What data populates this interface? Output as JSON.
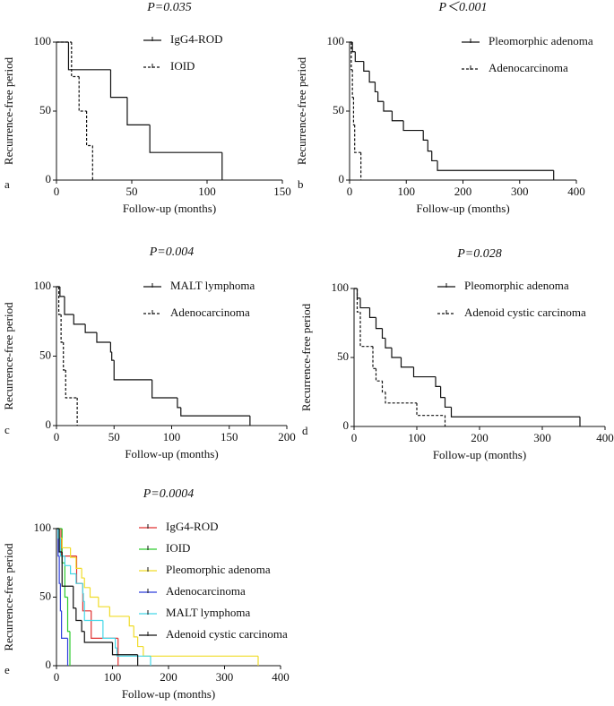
{
  "chart_data": [
    {
      "type": "step",
      "panel_label": "a",
      "annotation": "P=0.035",
      "xlabel": "Follow-up (months)",
      "ylabel": "Recurrence-free period",
      "xlim": [
        0,
        150
      ],
      "xticks": [
        0,
        50,
        100,
        150
      ],
      "ylim": [
        0,
        100
      ],
      "yticks": [
        0,
        50,
        100
      ],
      "series": [
        {
          "name": "IgG4-ROD",
          "color": "#111111",
          "dashed": false,
          "x": [
            0,
            8,
            36,
            47,
            62,
            110
          ],
          "values": [
            100,
            80,
            60,
            40,
            20,
            0
          ]
        },
        {
          "name": "IOID",
          "color": "#111111",
          "dashed": true,
          "x": [
            0,
            10,
            15,
            20,
            24
          ],
          "values": [
            100,
            75,
            50,
            25,
            0
          ]
        }
      ]
    },
    {
      "type": "step",
      "panel_label": "b",
      "annotation": "P＜0.001",
      "xlabel": "Follow-up (months)",
      "ylabel": "Recurrence-free period",
      "xlim": [
        0,
        400
      ],
      "xticks": [
        0,
        100,
        200,
        300,
        400
      ],
      "ylim": [
        0,
        100
      ],
      "yticks": [
        0,
        50,
        100
      ],
      "series": [
        {
          "name": "Pleomorphic adenoma",
          "color": "#111111",
          "dashed": false,
          "x": [
            0,
            5,
            10,
            25,
            35,
            45,
            50,
            60,
            75,
            95,
            130,
            138,
            145,
            155,
            360
          ],
          "values": [
            100,
            93,
            86,
            79,
            71,
            64,
            57,
            50,
            43,
            36,
            29,
            21,
            14,
            7,
            0
          ]
        },
        {
          "name": "Adenocarcinoma",
          "color": "#111111",
          "dashed": true,
          "x": [
            0,
            3,
            5,
            7,
            9,
            20
          ],
          "values": [
            100,
            80,
            60,
            40,
            20,
            0
          ]
        }
      ]
    },
    {
      "type": "step",
      "panel_label": "c",
      "annotation": "P=0.004",
      "xlabel": "Follow-up (months)",
      "ylabel": "Recurrence-free period",
      "xlim": [
        0,
        200
      ],
      "xticks": [
        0,
        50,
        100,
        150,
        200
      ],
      "ylim": [
        0,
        100
      ],
      "yticks": [
        0,
        50,
        100
      ],
      "series": [
        {
          "name": "MALT lymphoma",
          "color": "#111111",
          "dashed": false,
          "x": [
            0,
            3,
            7,
            15,
            25,
            35,
            47,
            48,
            50,
            83,
            105,
            108,
            168
          ],
          "values": [
            100,
            93,
            80,
            73,
            67,
            60,
            53,
            47,
            33,
            20,
            13,
            7,
            0
          ]
        },
        {
          "name": "Adenocarcinoma",
          "color": "#111111",
          "dashed": true,
          "x": [
            0,
            2,
            4,
            6,
            8,
            18
          ],
          "values": [
            100,
            80,
            60,
            40,
            20,
            0
          ]
        }
      ]
    },
    {
      "type": "step",
      "panel_label": "d",
      "annotation": "P=0.028",
      "xlabel": "Follow-up (months)",
      "ylabel": "Recurrence-free period",
      "xlim": [
        0,
        400
      ],
      "xticks": [
        0,
        100,
        200,
        300,
        400
      ],
      "ylim": [
        0,
        100
      ],
      "yticks": [
        0,
        50,
        100
      ],
      "series": [
        {
          "name": "Pleomorphic adenoma",
          "color": "#111111",
          "dashed": false,
          "x": [
            0,
            5,
            10,
            25,
            35,
            45,
            50,
            60,
            75,
            95,
            130,
            138,
            145,
            155,
            360
          ],
          "values": [
            100,
            93,
            86,
            79,
            71,
            64,
            57,
            50,
            43,
            36,
            29,
            21,
            14,
            7,
            0
          ]
        },
        {
          "name": "Adenoid cystic carcinoma",
          "color": "#111111",
          "dashed": true,
          "x": [
            0,
            5,
            10,
            30,
            35,
            45,
            50,
            100,
            145
          ],
          "values": [
            100,
            83,
            58,
            42,
            33,
            25,
            17,
            8,
            0
          ]
        }
      ]
    },
    {
      "type": "step",
      "panel_label": "e",
      "annotation": "P=0.0004",
      "xlabel": "Follow-up (months)",
      "ylabel": "Recurrence-free period",
      "xlim": [
        0,
        400
      ],
      "xticks": [
        0,
        100,
        200,
        300,
        400
      ],
      "ylim": [
        0,
        100
      ],
      "yticks": [
        0,
        50,
        100
      ],
      "series": [
        {
          "name": "IgG4-ROD",
          "color": "#e03030",
          "dashed": false,
          "x": [
            0,
            8,
            36,
            47,
            62,
            110
          ],
          "values": [
            100,
            80,
            60,
            40,
            20,
            0
          ]
        },
        {
          "name": "IOID",
          "color": "#2ecc2e",
          "dashed": false,
          "x": [
            0,
            10,
            15,
            20,
            24
          ],
          "values": [
            100,
            75,
            50,
            25,
            0
          ]
        },
        {
          "name": "Pleomorphic adenoma",
          "color": "#f0dc28",
          "dashed": false,
          "x": [
            0,
            5,
            10,
            25,
            35,
            45,
            50,
            60,
            75,
            95,
            130,
            138,
            145,
            155,
            360
          ],
          "values": [
            100,
            93,
            86,
            79,
            71,
            64,
            57,
            50,
            43,
            36,
            29,
            21,
            14,
            7,
            0
          ]
        },
        {
          "name": "Adenocarcinoma",
          "color": "#2f3fdc",
          "dashed": false,
          "x": [
            0,
            3,
            5,
            7,
            9,
            20
          ],
          "values": [
            100,
            80,
            60,
            40,
            20,
            0
          ]
        },
        {
          "name": "MALT lymphoma",
          "color": "#44d8e8",
          "dashed": false,
          "x": [
            0,
            3,
            7,
            15,
            25,
            35,
            47,
            48,
            50,
            83,
            105,
            108,
            168
          ],
          "values": [
            100,
            93,
            80,
            73,
            67,
            60,
            53,
            47,
            33,
            20,
            13,
            7,
            0
          ]
        },
        {
          "name": "Adenoid cystic carcinoma",
          "color": "#111111",
          "dashed": false,
          "x": [
            0,
            5,
            10,
            30,
            35,
            45,
            50,
            100,
            145
          ],
          "values": [
            100,
            83,
            58,
            42,
            33,
            25,
            17,
            8,
            0
          ]
        }
      ]
    }
  ]
}
